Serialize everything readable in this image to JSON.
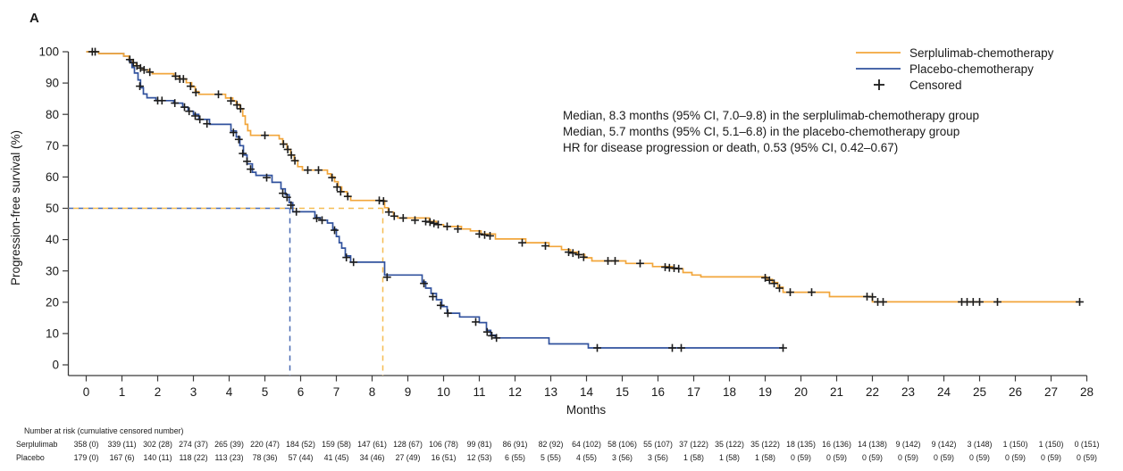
{
  "panel_label": "A",
  "legend": {
    "items": [
      {
        "label": "Serplulimab-chemotherapy"
      },
      {
        "label": "Placebo-chemotherapy"
      },
      {
        "label": "Censored"
      }
    ]
  },
  "annotation": {
    "line1": "Median, 8.3 months (95% CI, 7.0–9.8) in the serplulimab-chemotherapy group",
    "line2": "Median, 5.7 months (95% CI, 5.1–6.8) in the placebo-chemotherapy group",
    "line3": "HR for disease progression or death, 0.53 (95% CI, 0.42–0.67)"
  },
  "chart_data": {
    "type": "line",
    "subtype": "kaplan-meier-step",
    "title": "",
    "xlabel": "Months",
    "ylabel": "Progression-free survival (%)",
    "xlim": [
      0,
      28
    ],
    "ylim": [
      0,
      100
    ],
    "x_ticks": [
      0,
      1,
      2,
      3,
      4,
      5,
      6,
      7,
      8,
      9,
      10,
      11,
      12,
      13,
      14,
      15,
      16,
      17,
      18,
      19,
      20,
      21,
      22,
      23,
      24,
      25,
      26,
      27,
      28
    ],
    "y_ticks": [
      0,
      10,
      20,
      30,
      40,
      50,
      60,
      70,
      80,
      90,
      100
    ],
    "grid": false,
    "legend_position": "top-right",
    "guide_y_percent": 50,
    "censor_mark_color": "#1c1c1c",
    "series": [
      {
        "name": "Serplulimab-chemotherapy",
        "color": "#F2A63B",
        "dash_color": "#F5BC52",
        "median_months": 8.3,
        "steps": [
          [
            0,
            100
          ],
          [
            0.35,
            99.4
          ],
          [
            1.05,
            98.6
          ],
          [
            1.2,
            97.5
          ],
          [
            1.3,
            96.5
          ],
          [
            1.4,
            95.5
          ],
          [
            1.5,
            94.8
          ],
          [
            1.6,
            94.2
          ],
          [
            1.75,
            93.5
          ],
          [
            1.85,
            93
          ],
          [
            2.45,
            92.2
          ],
          [
            2.6,
            91.3
          ],
          [
            2.8,
            90.1
          ],
          [
            2.95,
            88.8
          ],
          [
            3.05,
            87.3
          ],
          [
            3.15,
            86.4
          ],
          [
            3.9,
            85.2
          ],
          [
            4.1,
            84.3
          ],
          [
            4.2,
            83.2
          ],
          [
            4.3,
            81.8
          ],
          [
            4.38,
            79.5
          ],
          [
            4.45,
            76.8
          ],
          [
            4.52,
            74.8
          ],
          [
            4.6,
            73.3
          ],
          [
            5.4,
            72.2
          ],
          [
            5.5,
            70.5
          ],
          [
            5.62,
            68.8
          ],
          [
            5.72,
            67
          ],
          [
            5.82,
            65.2
          ],
          [
            5.92,
            63.3
          ],
          [
            6.05,
            62.2
          ],
          [
            6.75,
            61
          ],
          [
            6.85,
            60
          ],
          [
            6.95,
            58.5
          ],
          [
            7.05,
            56.8
          ],
          [
            7.15,
            55.3
          ],
          [
            7.3,
            53.8
          ],
          [
            7.4,
            52.5
          ],
          [
            8.35,
            50.2
          ],
          [
            8.45,
            48.8
          ],
          [
            8.6,
            47.5
          ],
          [
            8.72,
            46.9
          ],
          [
            9.6,
            45.8
          ],
          [
            9.8,
            44.8
          ],
          [
            10,
            44.2
          ],
          [
            10.5,
            43.4
          ],
          [
            10.75,
            42.8
          ],
          [
            11.05,
            41.8
          ],
          [
            11.45,
            40.2
          ],
          [
            12.3,
            39
          ],
          [
            12.95,
            37.8
          ],
          [
            13.3,
            36.8
          ],
          [
            13.55,
            36
          ],
          [
            13.75,
            35.2
          ],
          [
            13.95,
            34.2
          ],
          [
            14.15,
            33.2
          ],
          [
            15.1,
            32.4
          ],
          [
            15.85,
            31.4
          ],
          [
            16.4,
            30.7
          ],
          [
            16.7,
            29.5
          ],
          [
            16.95,
            28.7
          ],
          [
            17.2,
            28.1
          ],
          [
            19.05,
            27.3
          ],
          [
            19.2,
            26.3
          ],
          [
            19.35,
            24.8
          ],
          [
            19.5,
            23.2
          ],
          [
            20.8,
            21.8
          ],
          [
            22,
            20.1
          ],
          [
            27.8,
            20.1
          ]
        ],
        "censor_marks": [
          [
            0.17,
            100
          ],
          [
            1.22,
            97.5
          ],
          [
            1.32,
            96.5
          ],
          [
            1.42,
            95.5
          ],
          [
            1.52,
            94.8
          ],
          [
            1.62,
            94.2
          ],
          [
            1.78,
            93.5
          ],
          [
            2.5,
            92.2
          ],
          [
            2.62,
            91.3
          ],
          [
            2.72,
            91.3
          ],
          [
            2.92,
            89
          ],
          [
            3.07,
            87
          ],
          [
            3.7,
            86.4
          ],
          [
            4.05,
            84.3
          ],
          [
            4.22,
            83
          ],
          [
            4.32,
            81.8
          ],
          [
            5,
            73.3
          ],
          [
            5.52,
            70.5
          ],
          [
            5.64,
            68.8
          ],
          [
            5.74,
            67
          ],
          [
            5.84,
            65.2
          ],
          [
            6.2,
            62.2
          ],
          [
            6.5,
            62.2
          ],
          [
            6.88,
            59.8
          ],
          [
            7.02,
            56.8
          ],
          [
            7.12,
            55.3
          ],
          [
            7.32,
            53.8
          ],
          [
            8.2,
            52.5
          ],
          [
            8.32,
            52.3
          ],
          [
            8.47,
            48.8
          ],
          [
            8.62,
            47.5
          ],
          [
            8.87,
            46.9
          ],
          [
            9.2,
            46.2
          ],
          [
            9.5,
            45.8
          ],
          [
            9.62,
            45.6
          ],
          [
            9.73,
            45.2
          ],
          [
            9.85,
            44.8
          ],
          [
            10.1,
            44.2
          ],
          [
            10.4,
            43.4
          ],
          [
            11,
            41.8
          ],
          [
            11.15,
            41.5
          ],
          [
            11.3,
            41.2
          ],
          [
            12.2,
            39
          ],
          [
            12.85,
            38
          ],
          [
            13.5,
            36
          ],
          [
            13.62,
            35.7
          ],
          [
            13.78,
            35.2
          ],
          [
            13.92,
            34.4
          ],
          [
            14.6,
            33.2
          ],
          [
            14.8,
            33.2
          ],
          [
            15.5,
            32.4
          ],
          [
            16.2,
            31.2
          ],
          [
            16.32,
            31
          ],
          [
            16.45,
            30.9
          ],
          [
            16.58,
            30.7
          ],
          [
            19,
            27.8
          ],
          [
            19.12,
            27
          ],
          [
            19.25,
            26
          ],
          [
            19.4,
            24.5
          ],
          [
            19.7,
            23.2
          ],
          [
            20.3,
            23.2
          ],
          [
            21.85,
            21.8
          ],
          [
            22,
            21.7
          ],
          [
            22.15,
            20.1
          ],
          [
            22.3,
            20.1
          ],
          [
            24.5,
            20.1
          ],
          [
            24.65,
            20.1
          ],
          [
            24.82,
            20.1
          ],
          [
            25,
            20.1
          ],
          [
            25.5,
            20.1
          ],
          [
            27.8,
            20.1
          ]
        ]
      },
      {
        "name": "Placebo-chemotherapy",
        "color": "#31529E",
        "dash_color": "#4A6CB3",
        "median_months": 5.7,
        "steps": [
          [
            0,
            100
          ],
          [
            0.35,
            99.4
          ],
          [
            1.05,
            98.6
          ],
          [
            1.2,
            97
          ],
          [
            1.28,
            95
          ],
          [
            1.35,
            93.2
          ],
          [
            1.45,
            91
          ],
          [
            1.52,
            88.5
          ],
          [
            1.6,
            86.5
          ],
          [
            1.7,
            85.3
          ],
          [
            1.95,
            84.4
          ],
          [
            2.45,
            83.6
          ],
          [
            2.7,
            82.3
          ],
          [
            2.85,
            81
          ],
          [
            3,
            80
          ],
          [
            3.15,
            78.4
          ],
          [
            3.45,
            76.8
          ],
          [
            4.05,
            74.7
          ],
          [
            4.2,
            72.8
          ],
          [
            4.3,
            70
          ],
          [
            4.4,
            67
          ],
          [
            4.5,
            64.2
          ],
          [
            4.65,
            61.5
          ],
          [
            4.75,
            60.5
          ],
          [
            5.2,
            58.3
          ],
          [
            5.45,
            56.2
          ],
          [
            5.57,
            54.3
          ],
          [
            5.68,
            51.8
          ],
          [
            5.78,
            48.9
          ],
          [
            6.4,
            47
          ],
          [
            6.55,
            46.2
          ],
          [
            6.75,
            45.3
          ],
          [
            6.9,
            43.3
          ],
          [
            7,
            41
          ],
          [
            7.08,
            39
          ],
          [
            7.15,
            37.3
          ],
          [
            7.25,
            34.8
          ],
          [
            7.4,
            32.8
          ],
          [
            8.35,
            28.7
          ],
          [
            9.4,
            26.5
          ],
          [
            9.5,
            24.5
          ],
          [
            9.65,
            22.8
          ],
          [
            9.8,
            20.8
          ],
          [
            9.95,
            18.6
          ],
          [
            10.1,
            16.5
          ],
          [
            10.45,
            15.3
          ],
          [
            11,
            13.5
          ],
          [
            11.2,
            11
          ],
          [
            11.32,
            9.5
          ],
          [
            11.45,
            8.6
          ],
          [
            12.95,
            6.7
          ],
          [
            14.05,
            5.4
          ],
          [
            19.5,
            5.4
          ]
        ],
        "censor_marks": [
          [
            0.25,
            100
          ],
          [
            1.5,
            89
          ],
          [
            2,
            84.4
          ],
          [
            2.12,
            84.4
          ],
          [
            2.48,
            83.6
          ],
          [
            2.75,
            82.3
          ],
          [
            2.88,
            81
          ],
          [
            3.05,
            79.5
          ],
          [
            3.18,
            78.4
          ],
          [
            3.38,
            77
          ],
          [
            4.12,
            74.2
          ],
          [
            4.27,
            72
          ],
          [
            4.38,
            67.5
          ],
          [
            4.5,
            65
          ],
          [
            4.6,
            62.5
          ],
          [
            5.05,
            59.8
          ],
          [
            5.5,
            54.8
          ],
          [
            5.62,
            53.5
          ],
          [
            5.73,
            51
          ],
          [
            5.88,
            48.9
          ],
          [
            6.45,
            46.8
          ],
          [
            6.6,
            46.2
          ],
          [
            6.95,
            43
          ],
          [
            7.28,
            34.3
          ],
          [
            7.48,
            32.8
          ],
          [
            8.42,
            28
          ],
          [
            9.45,
            26
          ],
          [
            9.7,
            21.8
          ],
          [
            9.92,
            19
          ],
          [
            10.12,
            16.5
          ],
          [
            10.9,
            13.7
          ],
          [
            11.22,
            10.5
          ],
          [
            11.35,
            9.3
          ],
          [
            11.48,
            8.6
          ],
          [
            14.3,
            5.4
          ],
          [
            16.4,
            5.4
          ],
          [
            16.65,
            5.4
          ],
          [
            19.5,
            5.4
          ]
        ]
      }
    ]
  },
  "risk_table": {
    "title": "Number at risk (cumulative censored number)",
    "rows": [
      {
        "label": "Serplulimab",
        "values": [
          "358 (0)",
          "339 (11)",
          "302 (28)",
          "274 (37)",
          "265 (39)",
          "220 (47)",
          "184 (52)",
          "159 (58)",
          "147 (61)",
          "128 (67)",
          "106 (78)",
          "99 (81)",
          "86 (91)",
          "82 (92)",
          "64 (102)",
          "58 (106)",
          "55 (107)",
          "37 (122)",
          "35 (122)",
          "35 (122)",
          "18 (135)",
          "16 (136)",
          "14 (138)",
          "9 (142)",
          "9 (142)",
          "3 (148)",
          "1 (150)",
          "1 (150)",
          "0 (151)"
        ]
      },
      {
        "label": "Placebo",
        "values": [
          "179 (0)",
          "167 (6)",
          "140 (11)",
          "118 (22)",
          "113 (23)",
          "78 (36)",
          "57 (44)",
          "41 (45)",
          "34 (46)",
          "27 (49)",
          "16 (51)",
          "12 (53)",
          "6 (55)",
          "5 (55)",
          "4 (55)",
          "3 (56)",
          "3 (56)",
          "1 (58)",
          "1 (58)",
          "1 (58)",
          "0 (59)",
          "0 (59)",
          "0 (59)",
          "0 (59)",
          "0 (59)",
          "0 (59)",
          "0 (59)",
          "0 (59)",
          "0 (59)"
        ]
      }
    ]
  }
}
